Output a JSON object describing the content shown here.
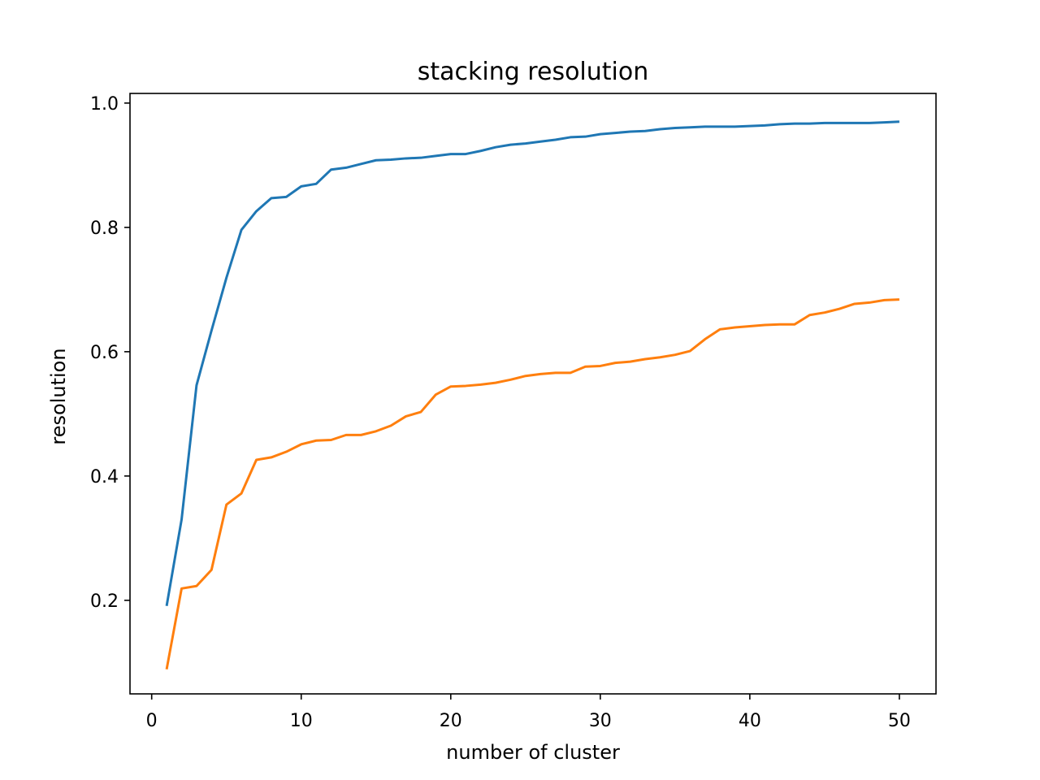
{
  "chart_data": {
    "type": "line",
    "title": "stacking resolution",
    "xlabel": "number of cluster",
    "ylabel": "resolution",
    "xlim": [
      -1.45,
      52.45
    ],
    "ylim": [
      0.0495,
      1.0155
    ],
    "xticks": [
      0,
      10,
      20,
      30,
      40,
      50
    ],
    "xtick_labels": [
      "0",
      "10",
      "20",
      "30",
      "40",
      "50"
    ],
    "yticks": [
      0.2,
      0.4,
      0.6,
      0.8,
      1.0
    ],
    "ytick_labels": [
      "0.2",
      "0.4",
      "0.6",
      "0.8",
      "1.0"
    ],
    "grid": false,
    "x": [
      1,
      2,
      3,
      4,
      5,
      6,
      7,
      8,
      9,
      10,
      11,
      12,
      13,
      14,
      15,
      16,
      17,
      18,
      19,
      20,
      21,
      22,
      23,
      24,
      25,
      26,
      27,
      28,
      29,
      30,
      31,
      32,
      33,
      34,
      35,
      36,
      37,
      38,
      39,
      40,
      41,
      42,
      43,
      44,
      45,
      46,
      47,
      48,
      49,
      50
    ],
    "series": [
      {
        "color": "#1f77b4",
        "values": [
          0.191,
          0.33,
          0.546,
          0.634,
          0.719,
          0.796,
          0.826,
          0.847,
          0.849,
          0.866,
          0.87,
          0.893,
          0.896,
          0.902,
          0.908,
          0.909,
          0.911,
          0.912,
          0.915,
          0.918,
          0.918,
          0.923,
          0.929,
          0.933,
          0.935,
          0.938,
          0.941,
          0.945,
          0.946,
          0.95,
          0.952,
          0.954,
          0.955,
          0.958,
          0.96,
          0.961,
          0.962,
          0.962,
          0.962,
          0.963,
          0.964,
          0.966,
          0.967,
          0.967,
          0.968,
          0.968,
          0.968,
          0.968,
          0.969,
          0.97
        ]
      },
      {
        "color": "#ff7f0e",
        "values": [
          0.089,
          0.219,
          0.223,
          0.249,
          0.354,
          0.372,
          0.426,
          0.43,
          0.439,
          0.451,
          0.457,
          0.458,
          0.466,
          0.466,
          0.472,
          0.481,
          0.496,
          0.503,
          0.531,
          0.544,
          0.545,
          0.547,
          0.55,
          0.555,
          0.561,
          0.564,
          0.566,
          0.566,
          0.576,
          0.577,
          0.582,
          0.584,
          0.588,
          0.591,
          0.595,
          0.601,
          0.62,
          0.636,
          0.639,
          0.641,
          0.643,
          0.644,
          0.644,
          0.659,
          0.663,
          0.669,
          0.677,
          0.679,
          0.683,
          0.684
        ]
      }
    ]
  }
}
